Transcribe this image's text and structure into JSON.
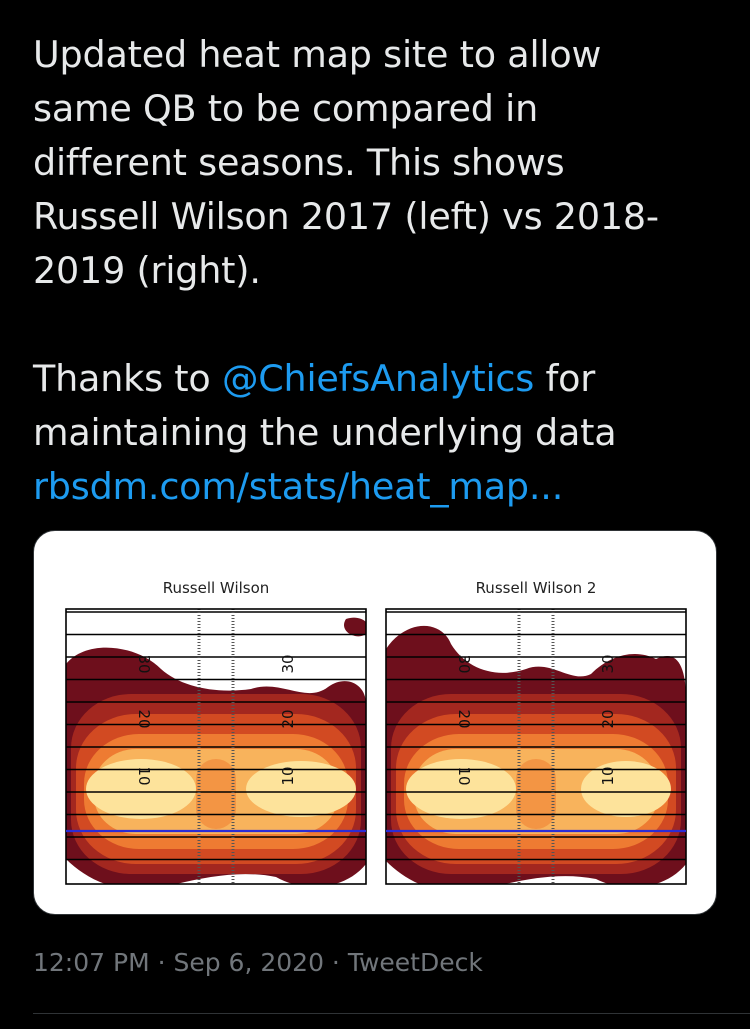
{
  "tweet": {
    "lines": [
      "Updated heat map site to allow",
      "same QB to be compared in",
      "different seasons. This shows",
      "Russell Wilson 2017 (left) vs 2018-",
      "2019 (right)."
    ],
    "thanks_prefix": "Thanks to ",
    "mention": "@ChiefsAnalytics",
    "thanks_suffix": " for",
    "line7": "maintaining the underlying data",
    "url": "rbsdm.com/stats/heat_map..."
  },
  "media": {
    "maps": [
      {
        "title": "Russell Wilson",
        "yard_labels": [
          "30",
          "20",
          "10",
          "30",
          "20",
          "10"
        ]
      },
      {
        "title": "Russell Wilson 2",
        "yard_labels": [
          "30",
          "20",
          "10",
          "30",
          "20",
          "10"
        ]
      }
    ],
    "colors": {
      "heat_darkest": "#6e0f1c",
      "heat_dark": "#a3271f",
      "heat_mid": "#d24a22",
      "heat_orange": "#ee7b32",
      "heat_light": "#f8b35c",
      "heat_pale": "#fde39b",
      "line_of_scrimmage": "#2b2bd6"
    }
  },
  "meta": {
    "time": "12:07 PM",
    "separator1": " · ",
    "date": "Sep 6, 2020",
    "separator2": " · ",
    "client": "TweetDeck"
  }
}
